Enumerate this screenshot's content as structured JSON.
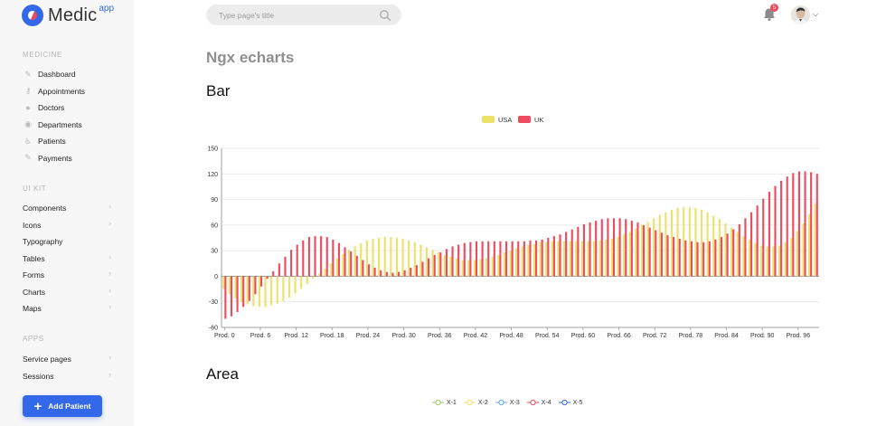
{
  "app": {
    "logo_text": "Medic",
    "logo_sup": "app"
  },
  "sidebar": {
    "sections": [
      {
        "title": "MEDICINE",
        "items": [
          {
            "label": "Dashboard",
            "icon": "brush-icon"
          },
          {
            "label": "Appointments",
            "icon": "key-icon"
          },
          {
            "label": "Doctors",
            "icon": "doctor-icon"
          },
          {
            "label": "Departments",
            "icon": "people-icon"
          },
          {
            "label": "Patients",
            "icon": "wheelchair-icon"
          },
          {
            "label": "Payments",
            "icon": "brush-icon"
          }
        ]
      },
      {
        "title": "UI KIT",
        "items": [
          {
            "label": "Components",
            "chevron": true
          },
          {
            "label": "Icons",
            "chevron": true
          },
          {
            "label": "Typography",
            "chevron": false
          },
          {
            "label": "Tables",
            "chevron": true
          },
          {
            "label": "Forms",
            "chevron": true
          },
          {
            "label": "Charts",
            "chevron": true
          },
          {
            "label": "Maps",
            "chevron": true
          }
        ]
      },
      {
        "title": "APPS",
        "items": [
          {
            "label": "Service pages",
            "chevron": true
          },
          {
            "label": "Sessions",
            "chevron": true
          }
        ]
      }
    ],
    "add_button_label": "Add Patient"
  },
  "header": {
    "search_placeholder": "Type page's title",
    "notification_count": "5"
  },
  "main": {
    "page_title": "Ngx echarts",
    "bar_heading": "Bar",
    "area_heading": "Area"
  },
  "colors": {
    "accent": "#3368e8",
    "usa": "#ece26a",
    "uk": "#ee4b5e"
  },
  "chart_data": {
    "type": "bar",
    "title": "",
    "xlabel": "",
    "ylabel": "",
    "ylim": [
      -60,
      150
    ],
    "yticks": [
      -60,
      -30,
      0,
      30,
      60,
      90,
      120,
      150
    ],
    "x_tick_labels": [
      "Prod. 0",
      "Prod. 6",
      "Prod. 12",
      "Prod. 18",
      "Prod. 24",
      "Prod. 30",
      "Prod. 36",
      "Prod. 42",
      "Prod. 48",
      "Prod. 54",
      "Prod. 60",
      "Prod. 66",
      "Prod. 72",
      "Prod. 78",
      "Prod. 84",
      "Prod. 90",
      "Prod. 96"
    ],
    "category_count": 100,
    "grid": true,
    "legend_position": "top-center",
    "series": [
      {
        "name": "USA",
        "color": "#ece26a",
        "values": [
          -15,
          -21,
          -26,
          -30,
          -33,
          -35,
          -36,
          -36,
          -34,
          -32,
          -29,
          -25,
          -20,
          -15,
          -9,
          -3,
          3,
          9,
          15,
          21,
          26,
          31,
          35,
          39,
          42,
          44,
          45,
          46,
          46,
          45,
          44,
          42,
          40,
          37,
          34,
          31,
          28,
          25,
          23,
          21,
          19,
          19,
          19,
          20,
          21,
          23,
          25,
          28,
          30,
          33,
          35,
          37,
          38,
          40,
          40,
          41,
          41,
          41,
          41,
          41,
          41,
          41,
          41,
          42,
          43,
          44,
          46,
          49,
          52,
          56,
          60,
          64,
          68,
          72,
          75,
          78,
          80,
          81,
          81,
          80,
          78,
          75,
          71,
          67,
          62,
          57,
          52,
          47,
          43,
          39,
          36,
          35,
          35,
          36,
          40,
          45,
          53,
          62,
          73,
          85
        ]
      },
      {
        "name": "UK",
        "color": "#ee4b5e",
        "values": [
          -50,
          -47,
          -42,
          -36,
          -29,
          -21,
          -12,
          -3,
          6,
          15,
          23,
          31,
          37,
          42,
          46,
          47,
          47,
          46,
          43,
          39,
          34,
          29,
          24,
          19,
          14,
          10,
          7,
          5,
          4,
          5,
          7,
          10,
          13,
          17,
          21,
          25,
          28,
          32,
          35,
          37,
          39,
          40,
          41,
          41,
          41,
          41,
          41,
          41,
          41,
          41,
          41,
          42,
          42,
          43,
          45,
          47,
          49,
          52,
          55,
          58,
          61,
          63,
          65,
          67,
          68,
          68,
          68,
          67,
          65,
          63,
          60,
          57,
          54,
          51,
          48,
          46,
          44,
          42,
          41,
          40,
          40,
          41,
          43,
          46,
          50,
          55,
          61,
          68,
          75,
          83,
          91,
          99,
          106,
          112,
          117,
          121,
          123,
          123,
          122,
          120
        ]
      }
    ]
  },
  "area_legend": [
    "X-1",
    "X-2",
    "X-3",
    "X-4",
    "X-5"
  ],
  "area_legend_colors": [
    "#9ccc65",
    "#ece26a",
    "#5da8ee",
    "#ee4b5e",
    "#3368e8"
  ]
}
